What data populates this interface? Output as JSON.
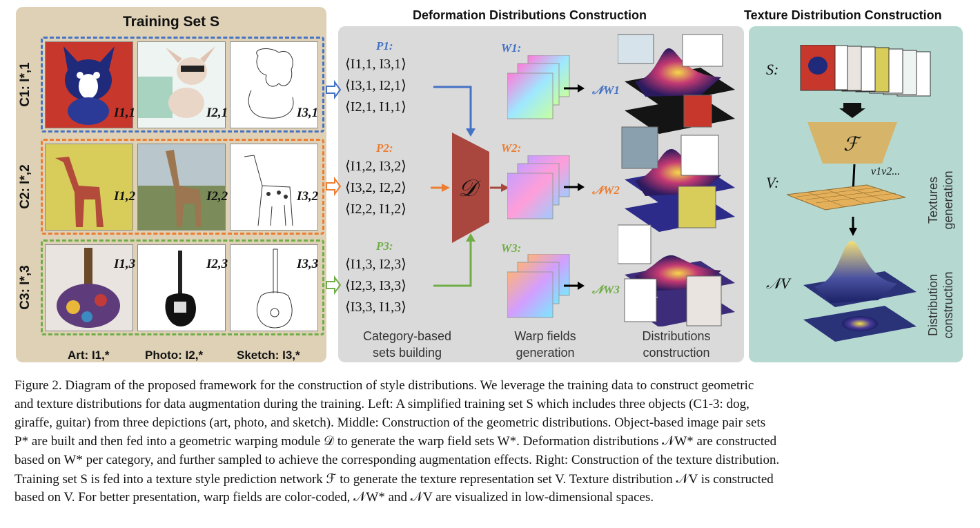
{
  "headers": {
    "training": "Training Set S",
    "deformation": "Deformation Distributions Construction",
    "texture": "Texture Distribution Construction"
  },
  "rows": [
    {
      "label": "C1: I*,1",
      "color": "#4472c4",
      "images": [
        "I1,1",
        "I2,1",
        "I3,1"
      ],
      "set_label": "P1:",
      "pairs": [
        "⟨I1,1, I3,1⟩",
        "⟨I3,1, I2,1⟩",
        "⟨I2,1, I1,1⟩"
      ],
      "warp_label": "W1:",
      "dist_label": "𝒩W1"
    },
    {
      "label": "C2: I*,2",
      "color": "#ed7d31",
      "images": [
        "I1,2",
        "I2,2",
        "I3,2"
      ],
      "set_label": "P2:",
      "pairs": [
        "⟨I1,2, I3,2⟩",
        "⟨I3,2, I2,2⟩",
        "⟨I2,2, I1,2⟩"
      ],
      "warp_label": "W2:",
      "dist_label": "𝒩W2"
    },
    {
      "label": "C3: I*,3",
      "color": "#70ad47",
      "images": [
        "I1,3",
        "I2,3",
        "I3,3"
      ],
      "set_label": "P3:",
      "pairs": [
        "⟨I1,3, I2,3⟩",
        "⟨I2,3, I3,3⟩",
        "⟨I3,3, I1,3⟩"
      ],
      "warp_label": "W3:",
      "dist_label": "𝒩W3"
    }
  ],
  "bottom_labels": {
    "art": "Art: I1,*",
    "photo": "Photo: I2,*",
    "sketch": "Sketch: I3,*"
  },
  "stage_labels": {
    "sets": [
      "Category-based",
      "sets building"
    ],
    "warp": [
      "Warp fields",
      "generation"
    ],
    "dist": [
      "Distributions",
      "construction"
    ]
  },
  "module_D": "𝒟",
  "texture_panel": {
    "s_label": "S:",
    "f_label": "ℱ",
    "v_label": "V:",
    "v_points": "v1v2...",
    "n_label": "𝒩V",
    "textures_generation": [
      "Textures",
      "generation"
    ],
    "distribution_construction": [
      "Distribution",
      "construction"
    ]
  },
  "caption": [
    "Figure 2. Diagram of the proposed framework for the construction of style distributions. We leverage the training data to construct geometric",
    "and texture distributions for data augmentation during the training. Left: A simplified training set S which includes three objects (C1-3: dog,",
    "giraffe, guitar) from three depictions (art, photo, and sketch). Middle: Construction of the geometric distributions. Object-based image pair sets",
    "P* are built and then fed into a geometric warping module 𝒟 to generate the warp field sets W*. Deformation distributions 𝒩W* are constructed",
    "based on W* per category, and further sampled to achieve the corresponding augmentation effects. Right: Construction of the texture distribution.",
    "Training set S is fed into a texture style prediction network ℱ to generate the texture representation set V. Texture distribution 𝒩V is constructed",
    "based on V. For better presentation, warp fields are color-coded, 𝒩W* and 𝒩V are visualized in low-dimensional spaces."
  ],
  "colors": {
    "blue": "#4472c4",
    "orange": "#ed7d31",
    "green": "#70ad47",
    "module": "#a9473f",
    "mapping": "#d6b46a"
  }
}
